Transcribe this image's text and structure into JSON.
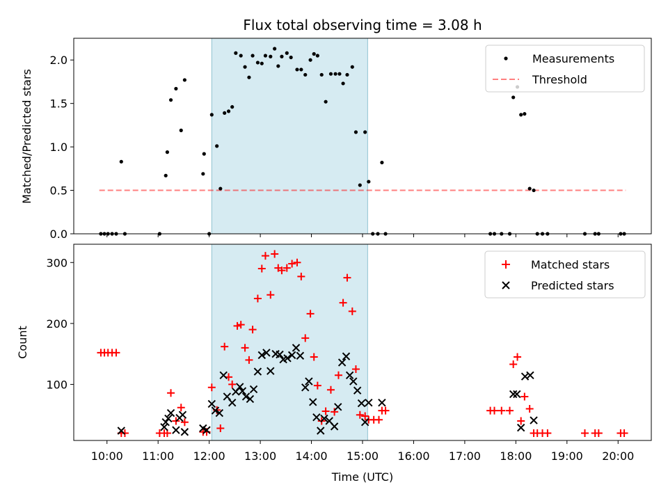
{
  "chart_data": {
    "type": "scatter",
    "title": "Flux total observing time = 3.08 h",
    "xlabel": "Time (UTC)",
    "x_unit": "hours UTC",
    "xlim": [
      9.35,
      20.65
    ],
    "x_ticks": [
      10,
      11,
      12,
      13,
      14,
      15,
      16,
      17,
      18,
      19,
      20
    ],
    "x_tick_labels": [
      "10:00",
      "11:00",
      "12:00",
      "13:00",
      "14:00",
      "15:00",
      "16:00",
      "17:00",
      "18:00",
      "19:00",
      "20:00"
    ],
    "observing_window": [
      12.05,
      15.1
    ],
    "top": {
      "ylabel": "Matched/Predicted stars",
      "ylim": [
        0,
        2.25
      ],
      "y_ticks": [
        0.0,
        0.5,
        1.0,
        1.5,
        2.0
      ],
      "y_tick_labels": [
        "0.0",
        "0.5",
        "1.0",
        "1.5",
        "2.0"
      ],
      "threshold": {
        "value": 0.5,
        "x_start": 9.85,
        "x_end": 20.15
      },
      "legend": [
        "Measurements",
        "Threshold"
      ],
      "measurements": [
        [
          9.88,
          0.0
        ],
        [
          9.95,
          0.0
        ],
        [
          10.02,
          0.0
        ],
        [
          10.1,
          0.0
        ],
        [
          10.18,
          0.0
        ],
        [
          10.28,
          0.83
        ],
        [
          10.35,
          0.0
        ],
        [
          11.03,
          0.0
        ],
        [
          11.15,
          0.67
        ],
        [
          11.18,
          0.94
        ],
        [
          11.25,
          1.54
        ],
        [
          11.35,
          1.67
        ],
        [
          11.45,
          1.19
        ],
        [
          11.52,
          1.77
        ],
        [
          11.88,
          0.69
        ],
        [
          11.9,
          0.92
        ],
        [
          12.0,
          0.0
        ],
        [
          12.05,
          1.37
        ],
        [
          12.15,
          1.01
        ],
        [
          12.22,
          0.52
        ],
        [
          12.3,
          1.39
        ],
        [
          12.38,
          1.41
        ],
        [
          12.45,
          1.46
        ],
        [
          12.52,
          2.08
        ],
        [
          12.62,
          2.05
        ],
        [
          12.7,
          1.92
        ],
        [
          12.78,
          1.8
        ],
        [
          12.85,
          2.05
        ],
        [
          12.95,
          1.97
        ],
        [
          13.03,
          1.96
        ],
        [
          13.1,
          2.05
        ],
        [
          13.2,
          2.04
        ],
        [
          13.28,
          2.13
        ],
        [
          13.35,
          1.93
        ],
        [
          13.42,
          2.04
        ],
        [
          13.52,
          2.08
        ],
        [
          13.6,
          2.03
        ],
        [
          13.72,
          1.89
        ],
        [
          13.8,
          1.89
        ],
        [
          13.88,
          1.83
        ],
        [
          13.98,
          2.0
        ],
        [
          14.05,
          2.07
        ],
        [
          14.12,
          2.05
        ],
        [
          14.2,
          1.83
        ],
        [
          14.28,
          1.52
        ],
        [
          14.38,
          1.84
        ],
        [
          14.47,
          1.84
        ],
        [
          14.55,
          1.84
        ],
        [
          14.62,
          1.73
        ],
        [
          14.7,
          1.83
        ],
        [
          14.8,
          1.92
        ],
        [
          14.87,
          1.17
        ],
        [
          14.95,
          0.56
        ],
        [
          15.05,
          1.17
        ],
        [
          15.12,
          0.6
        ],
        [
          15.2,
          0.0
        ],
        [
          15.3,
          0.0
        ],
        [
          15.38,
          0.82
        ],
        [
          15.45,
          0.0
        ],
        [
          17.5,
          0.0
        ],
        [
          17.58,
          0.0
        ],
        [
          17.72,
          0.0
        ],
        [
          17.88,
          0.0
        ],
        [
          17.95,
          1.57
        ],
        [
          18.03,
          1.69
        ],
        [
          18.1,
          1.37
        ],
        [
          18.17,
          1.38
        ],
        [
          18.27,
          0.52
        ],
        [
          18.35,
          0.5
        ],
        [
          18.42,
          0.0
        ],
        [
          18.52,
          0.0
        ],
        [
          18.62,
          0.0
        ],
        [
          19.35,
          0.0
        ],
        [
          19.55,
          0.0
        ],
        [
          19.62,
          0.0
        ],
        [
          20.05,
          0.0
        ],
        [
          20.12,
          0.0
        ]
      ]
    },
    "bottom": {
      "ylabel": "Count",
      "ylim": [
        8,
        330
      ],
      "y_ticks": [
        100,
        200,
        300
      ],
      "y_tick_labels": [
        "100",
        "200",
        "300"
      ],
      "legend": [
        "Matched stars",
        "Predicted stars"
      ],
      "matched": [
        [
          9.88,
          152
        ],
        [
          9.95,
          152
        ],
        [
          10.02,
          152
        ],
        [
          10.1,
          152
        ],
        [
          10.18,
          152
        ],
        [
          10.28,
          20
        ],
        [
          10.35,
          20
        ],
        [
          11.03,
          20
        ],
        [
          11.12,
          20
        ],
        [
          11.18,
          20
        ],
        [
          11.25,
          86
        ],
        [
          11.35,
          40
        ],
        [
          11.45,
          62
        ],
        [
          11.52,
          38
        ],
        [
          11.88,
          22
        ],
        [
          11.95,
          22
        ],
        [
          12.05,
          95
        ],
        [
          12.15,
          58
        ],
        [
          12.22,
          28
        ],
        [
          12.3,
          162
        ],
        [
          12.38,
          112
        ],
        [
          12.45,
          100
        ],
        [
          12.55,
          196
        ],
        [
          12.62,
          198
        ],
        [
          12.7,
          160
        ],
        [
          12.78,
          140
        ],
        [
          12.85,
          190
        ],
        [
          12.95,
          241
        ],
        [
          13.03,
          290
        ],
        [
          13.1,
          311
        ],
        [
          13.2,
          247
        ],
        [
          13.28,
          314
        ],
        [
          13.35,
          291
        ],
        [
          13.42,
          287
        ],
        [
          13.52,
          291
        ],
        [
          13.62,
          298
        ],
        [
          13.72,
          300
        ],
        [
          13.8,
          277
        ],
        [
          13.88,
          176
        ],
        [
          13.98,
          216
        ],
        [
          14.05,
          145
        ],
        [
          14.12,
          98
        ],
        [
          14.2,
          40
        ],
        [
          14.28,
          56
        ],
        [
          14.38,
          91
        ],
        [
          14.45,
          55
        ],
        [
          14.53,
          115
        ],
        [
          14.62,
          234
        ],
        [
          14.7,
          275
        ],
        [
          14.8,
          220
        ],
        [
          14.87,
          125
        ],
        [
          14.95,
          50
        ],
        [
          15.05,
          48
        ],
        [
          15.12,
          42
        ],
        [
          15.22,
          42
        ],
        [
          15.32,
          42
        ],
        [
          15.38,
          57
        ],
        [
          15.45,
          57
        ],
        [
          17.5,
          57
        ],
        [
          17.58,
          57
        ],
        [
          17.72,
          57
        ],
        [
          17.88,
          57
        ],
        [
          17.95,
          133
        ],
        [
          18.03,
          145
        ],
        [
          18.1,
          40
        ],
        [
          18.17,
          80
        ],
        [
          18.27,
          60
        ],
        [
          18.35,
          20
        ],
        [
          18.42,
          20
        ],
        [
          18.52,
          20
        ],
        [
          18.62,
          20
        ],
        [
          19.35,
          20
        ],
        [
          19.55,
          20
        ],
        [
          19.62,
          20
        ],
        [
          20.05,
          20
        ],
        [
          20.12,
          20
        ]
      ],
      "predicted": [
        [
          10.28,
          24
        ],
        [
          11.12,
          30
        ],
        [
          11.15,
          38
        ],
        [
          11.2,
          44
        ],
        [
          11.25,
          53
        ],
        [
          11.35,
          25
        ],
        [
          11.42,
          45
        ],
        [
          11.48,
          50
        ],
        [
          11.52,
          22
        ],
        [
          11.88,
          28
        ],
        [
          11.95,
          25
        ],
        [
          12.05,
          68
        ],
        [
          12.12,
          57
        ],
        [
          12.2,
          53
        ],
        [
          12.28,
          115
        ],
        [
          12.35,
          80
        ],
        [
          12.45,
          70
        ],
        [
          12.52,
          88
        ],
        [
          12.6,
          96
        ],
        [
          12.65,
          89
        ],
        [
          12.72,
          80
        ],
        [
          12.8,
          76
        ],
        [
          12.87,
          92
        ],
        [
          12.95,
          121
        ],
        [
          13.03,
          148
        ],
        [
          13.12,
          152
        ],
        [
          13.2,
          122
        ],
        [
          13.3,
          150
        ],
        [
          13.38,
          149
        ],
        [
          13.45,
          141
        ],
        [
          13.53,
          143
        ],
        [
          13.62,
          148
        ],
        [
          13.7,
          160
        ],
        [
          13.78,
          147
        ],
        [
          13.88,
          95
        ],
        [
          13.95,
          105
        ],
        [
          14.03,
          71
        ],
        [
          14.1,
          46
        ],
        [
          14.18,
          24
        ],
        [
          14.25,
          44
        ],
        [
          14.35,
          40
        ],
        [
          14.45,
          31
        ],
        [
          14.52,
          63
        ],
        [
          14.6,
          136
        ],
        [
          14.68,
          146
        ],
        [
          14.75,
          115
        ],
        [
          14.82,
          105
        ],
        [
          14.9,
          90
        ],
        [
          14.98,
          69
        ],
        [
          15.05,
          38
        ],
        [
          15.12,
          70
        ],
        [
          15.38,
          70
        ],
        [
          17.95,
          84
        ],
        [
          18.02,
          84
        ],
        [
          18.1,
          29
        ],
        [
          18.18,
          113
        ],
        [
          18.28,
          115
        ],
        [
          18.35,
          41
        ]
      ]
    }
  }
}
